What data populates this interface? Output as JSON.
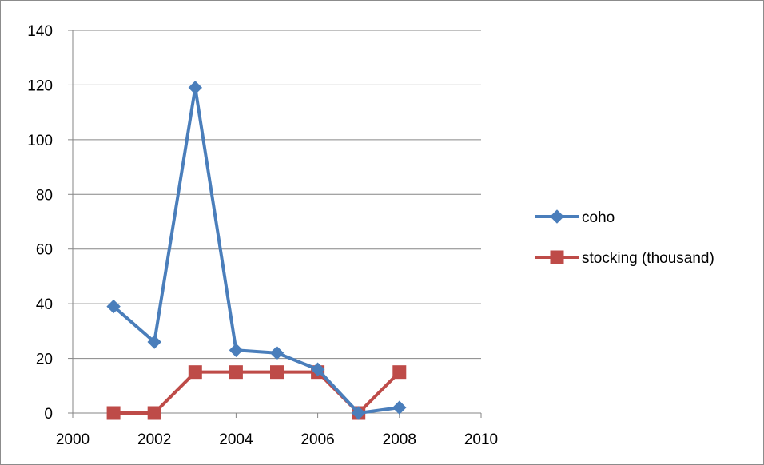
{
  "chart_data": {
    "type": "line",
    "title": "",
    "xlabel": "",
    "ylabel": "",
    "xlim": [
      2000,
      2010
    ],
    "ylim": [
      0,
      140
    ],
    "x_ticks": [
      2000,
      2002,
      2004,
      2006,
      2008,
      2010
    ],
    "y_ticks": [
      0,
      20,
      40,
      60,
      80,
      100,
      120,
      140
    ],
    "x_tick_labels": [
      "2000",
      "2002",
      "2004",
      "2006",
      "2008",
      "2010"
    ],
    "y_tick_labels": [
      "0",
      "20",
      "40",
      "60",
      "80",
      "100",
      "120",
      "140"
    ],
    "grid": "horizontal",
    "legend": "right",
    "series": [
      {
        "name": "coho",
        "color": "#4a7ebb",
        "marker": "diamond",
        "x": [
          2001,
          2002,
          2003,
          2004,
          2005,
          2006,
          2007,
          2008
        ],
        "y": [
          39,
          26,
          119,
          23,
          22,
          16,
          0,
          2
        ]
      },
      {
        "name": "stocking (thousand)",
        "color": "#be4b48",
        "marker": "square",
        "x": [
          2001,
          2002,
          2003,
          2004,
          2005,
          2006,
          2007,
          2008
        ],
        "y": [
          0,
          0,
          15,
          15,
          15,
          15,
          0,
          15
        ]
      }
    ]
  }
}
